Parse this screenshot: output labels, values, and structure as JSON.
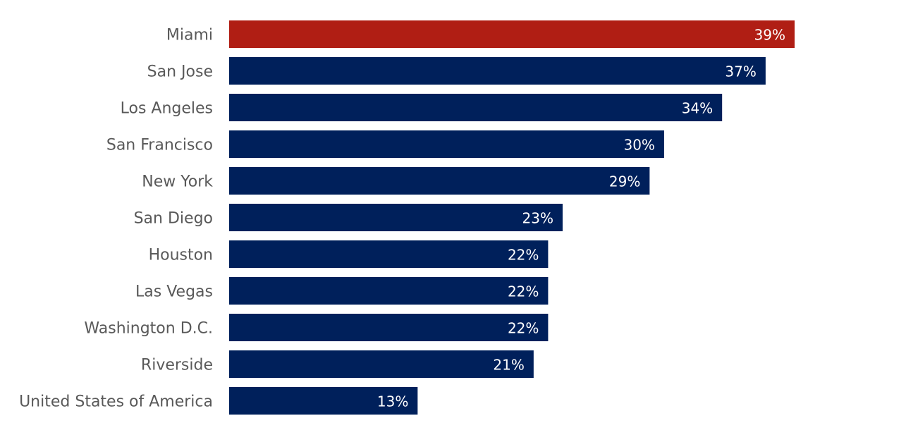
{
  "chart_data": {
    "type": "bar",
    "orientation": "horizontal",
    "categories": [
      "Miami",
      "San Jose",
      "Los Angeles",
      "San Francisco",
      "New York",
      "San Diego",
      "Houston",
      "Las Vegas",
      "Washington D.C.",
      "Riverside",
      "United States of America"
    ],
    "values": [
      39,
      37,
      34,
      30,
      29,
      23,
      22,
      22,
      22,
      21,
      13
    ],
    "value_labels": [
      "39%",
      "37%",
      "34%",
      "30%",
      "29%",
      "23%",
      "22%",
      "22%",
      "22%",
      "21%",
      "13%"
    ],
    "unit": "%",
    "xlim": [
      0,
      39
    ],
    "grid": false,
    "legend": "none",
    "highlight_index": 0,
    "colors": {
      "highlight": "#B01E14",
      "default": "#00205B",
      "label_text": "#595959",
      "value_text": "#FFFFFF"
    }
  }
}
